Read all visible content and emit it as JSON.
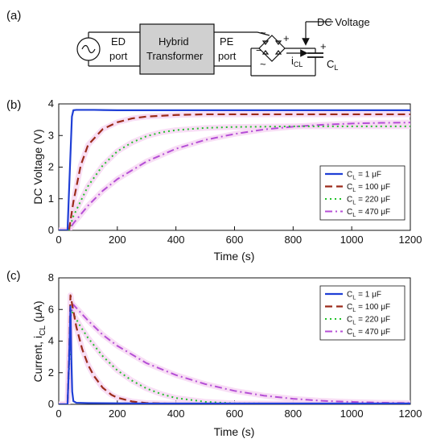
{
  "panel_labels": {
    "a": "(a)",
    "b": "(b)",
    "c": "(c)"
  },
  "circuit": {
    "ed_port": [
      "ED",
      "port"
    ],
    "transformer": [
      "Hybrid",
      "Transformer"
    ],
    "pe_port": [
      "PE",
      "port"
    ],
    "dc_voltage": "DC Voltage",
    "ic_label": "i",
    "ic_sub": "CL",
    "cl_label": "C",
    "cl_sub": "L",
    "plus": "+",
    "minus": "−",
    "tilde": "~"
  },
  "colors": {
    "c1": "#1f3fd6",
    "c100": "#9c2b1a",
    "c220": "#22c22a",
    "c470": "#b54fd6",
    "halo": "#f6d6f2",
    "cyan": "#7fe4f4"
  },
  "chart_data": [
    {
      "type": "line",
      "xlabel": "Time (s)",
      "ylabel": "DC Voltage (V)",
      "xlim": [
        0,
        1200
      ],
      "ylim": [
        0,
        4
      ],
      "xticks": [
        "0",
        "200",
        "400",
        "600",
        "800",
        "1000",
        "1200"
      ],
      "yticks": [
        "0",
        "1",
        "2",
        "3",
        "4"
      ],
      "grid": false,
      "legend_position": "right",
      "series": [
        {
          "name_main": "C",
          "name_sub": "L",
          "name_tail": " = 1 μF",
          "name": "CL = 1 μF",
          "x": [
            0,
            30,
            40,
            45,
            50,
            60,
            80,
            120,
            200,
            400,
            800,
            1200
          ],
          "y": [
            0,
            0,
            2.4,
            3.6,
            3.8,
            3.81,
            3.81,
            3.81,
            3.8,
            3.8,
            3.8,
            3.8
          ]
        },
        {
          "name_main": "C",
          "name_sub": "L",
          "name_tail": " = 100 μF",
          "name": "CL = 100 μF",
          "x": [
            0,
            35,
            50,
            75,
            100,
            150,
            200,
            250,
            300,
            400,
            500,
            600,
            800,
            1000,
            1200
          ],
          "y": [
            0,
            0,
            0.9,
            2.05,
            2.7,
            3.2,
            3.42,
            3.54,
            3.6,
            3.65,
            3.67,
            3.67,
            3.67,
            3.67,
            3.67
          ]
        },
        {
          "name_main": "C",
          "name_sub": "L",
          "name_tail": " = 220 μF",
          "name": "CL = 220 μF",
          "x": [
            0,
            35,
            50,
            100,
            150,
            200,
            250,
            300,
            350,
            400,
            500,
            600,
            700,
            800,
            1000,
            1200
          ],
          "y": [
            0,
            0,
            0.45,
            1.4,
            2.05,
            2.5,
            2.78,
            2.98,
            3.1,
            3.17,
            3.24,
            3.27,
            3.28,
            3.29,
            3.29,
            3.29
          ]
        },
        {
          "name_main": "C",
          "name_sub": "L",
          "name_tail": " = 470 μF",
          "name": "CL = 470 μF",
          "x": [
            0,
            35,
            50,
            100,
            150,
            200,
            300,
            400,
            500,
            600,
            700,
            800,
            900,
            1000,
            1100,
            1200
          ],
          "y": [
            0,
            0,
            0.22,
            0.78,
            1.25,
            1.62,
            2.18,
            2.58,
            2.86,
            3.05,
            3.19,
            3.28,
            3.34,
            3.38,
            3.4,
            3.41
          ]
        }
      ]
    },
    {
      "type": "line",
      "xlabel": "Time (s)",
      "ylabel_main": "Current, i",
      "ylabel_sub": "CL",
      "ylabel_tail": " (μA)",
      "xlim": [
        0,
        1200
      ],
      "ylim": [
        0,
        8
      ],
      "xticks": [
        "0",
        "200",
        "400",
        "600",
        "800",
        "1000",
        "1200"
      ],
      "yticks": [
        "0",
        "2",
        "4",
        "6",
        "8"
      ],
      "grid": false,
      "legend_position": "top-right",
      "series": [
        {
          "name_main": "C",
          "name_sub": "L",
          "name_tail": " = 1 μF",
          "name": "CL = 1 μF",
          "x": [
            0,
            30,
            35,
            40,
            43,
            46,
            50,
            60,
            100,
            300,
            600,
            1200
          ],
          "y": [
            0,
            0,
            2.5,
            6.2,
            3.0,
            0.8,
            0.2,
            0.1,
            0.08,
            0.05,
            0.05,
            0.05
          ]
        },
        {
          "name_main": "C",
          "name_sub": "L",
          "name_tail": " = 100 μF",
          "name": "CL = 100 μF",
          "x": [
            0,
            30,
            36,
            40,
            50,
            60,
            80,
            100,
            120,
            150,
            180,
            200,
            250,
            300,
            400,
            1200
          ],
          "y": [
            0,
            0,
            3.5,
            6.9,
            5.9,
            4.9,
            3.5,
            2.5,
            1.8,
            1.05,
            0.6,
            0.42,
            0.18,
            0.08,
            0.03,
            0.02
          ]
        },
        {
          "name_main": "C",
          "name_sub": "L",
          "name_tail": " = 220 μF",
          "name": "CL = 220 μF",
          "x": [
            0,
            30,
            38,
            42,
            50,
            75,
            100,
            150,
            200,
            250,
            300,
            350,
            400,
            500,
            600,
            1200
          ],
          "y": [
            0,
            0,
            3.5,
            6.0,
            5.7,
            4.9,
            4.2,
            3.05,
            2.15,
            1.5,
            1.0,
            0.65,
            0.4,
            0.16,
            0.06,
            0.02
          ]
        },
        {
          "name_main": "C",
          "name_sub": "L",
          "name_tail": " = 470 μF",
          "name": "CL = 470 μF",
          "x": [
            0,
            30,
            40,
            50,
            70,
            100,
            150,
            200,
            300,
            400,
            500,
            600,
            700,
            800,
            900,
            1000,
            1100,
            1200
          ],
          "y": [
            0,
            0,
            5.5,
            6.3,
            5.9,
            5.3,
            4.4,
            3.7,
            2.6,
            1.85,
            1.28,
            0.85,
            0.55,
            0.35,
            0.22,
            0.15,
            0.1,
            0.08
          ]
        }
      ]
    }
  ]
}
